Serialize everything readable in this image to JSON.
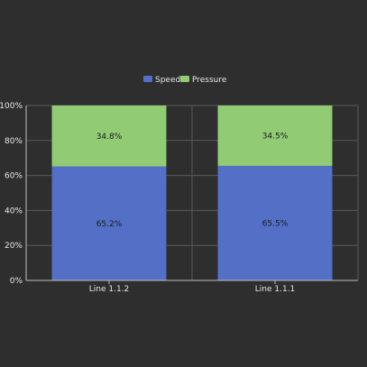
{
  "chart_data": {
    "type": "bar",
    "stacked": true,
    "percent": true,
    "categories": [
      "Line 1.1.2",
      "Line 1.1.1"
    ],
    "series": [
      {
        "name": "Speed",
        "values": [
          65.2,
          65.5
        ],
        "labels": [
          "65.2%",
          "65.5%"
        ],
        "color": "#5470c6"
      },
      {
        "name": "Pressure",
        "values": [
          34.8,
          34.5
        ],
        "labels": [
          "34.8%",
          "34.5%"
        ],
        "color": "#91cc75"
      }
    ],
    "ylim": [
      0,
      100
    ],
    "yticks": [
      0,
      20,
      40,
      60,
      80,
      100
    ],
    "ytick_labels": [
      "0%",
      "20%",
      "40%",
      "60%",
      "80%",
      "100%"
    ],
    "grid": true,
    "legend": "top-center",
    "colors": {
      "background": "#2e2e2e",
      "grid": "#5a5a5a",
      "axis": "#bdbdbd",
      "text": "#e6e6e6"
    }
  }
}
